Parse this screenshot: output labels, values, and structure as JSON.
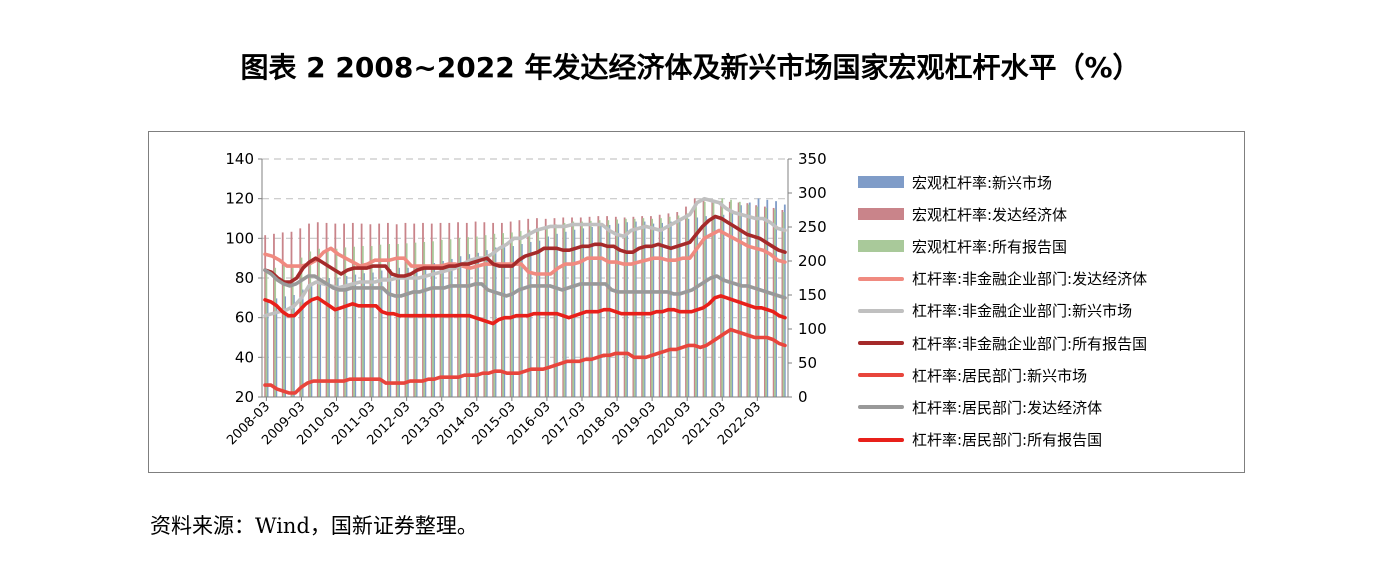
{
  "title": "图表 2  2008~2022 年发达经济体及新兴市场国家宏观杠杆水平（%）",
  "source": "资料来源：Wind，国新证券整理。",
  "chart_data": {
    "type": "bar+line",
    "title": "",
    "xlabel": "",
    "ylabel": "",
    "left_axis": {
      "range": [
        20,
        140
      ],
      "ticks": [
        "20",
        "40",
        "60",
        "80",
        "100",
        "120",
        "140"
      ]
    },
    "right_axis": {
      "range": [
        0,
        350
      ],
      "ticks": [
        "0",
        "50",
        "100",
        "150",
        "200",
        "250",
        "300",
        "350"
      ]
    },
    "x_tick_labels": [
      "2008-03",
      "2009-03",
      "2010-03",
      "2011-03",
      "2012-03",
      "2013-03",
      "2014-03",
      "2015-03",
      "2016-03",
      "2017-03",
      "2018-03",
      "2019-03",
      "2020-03",
      "2021-03",
      "2022-03"
    ],
    "quarters_per_year": 4,
    "grid": "horizontal dashed",
    "legend_position": "right",
    "bar_series": [
      {
        "name": "宏观杠杆率:新兴市场",
        "color": "#7f9cc8",
        "axis": "right",
        "values": [
          142,
          145,
          148,
          150,
          158,
          168,
          172,
          175,
          175,
          178,
          180,
          182,
          183,
          186,
          188,
          190,
          190,
          192,
          195,
          197,
          200,
          203,
          207,
          210,
          212,
          216,
          220,
          222,
          222,
          225,
          228,
          230,
          236,
          240,
          243,
          246,
          248,
          250,
          252,
          253,
          255,
          257,
          258,
          258,
          255,
          256,
          258,
          260,
          262,
          264,
          266,
          268,
          268,
          275,
          282,
          286,
          292,
          290,
          288,
          283
        ]
      },
      {
        "name": "宏观杠杆率:发达经济体",
        "color": "#c9848a",
        "axis": "right",
        "values": [
          238,
          240,
          242,
          243,
          248,
          255,
          257,
          256,
          255,
          255,
          256,
          255,
          254,
          255,
          256,
          254,
          256,
          255,
          256,
          255,
          256,
          256,
          257,
          256,
          258,
          257,
          256,
          256,
          258,
          260,
          262,
          263,
          262,
          263,
          264,
          264,
          264,
          265,
          266,
          266,
          265,
          264,
          265,
          266,
          266,
          268,
          270,
          272,
          280,
          292,
          292,
          290,
          288,
          287,
          286,
          285,
          282,
          280,
          278,
          275
        ]
      },
      {
        "name": "宏观杠杆率:所有报告国",
        "color": "#a9c99a",
        "axis": "right",
        "values": [
          188,
          190,
          193,
          195,
          205,
          214,
          218,
          218,
          218,
          220,
          221,
          222,
          222,
          224,
          225,
          225,
          226,
          227,
          228,
          229,
          231,
          232,
          234,
          235,
          236,
          238,
          240,
          241,
          242,
          244,
          246,
          248,
          252,
          254,
          256,
          258,
          258,
          259,
          260,
          260,
          261,
          262,
          262,
          263,
          262,
          263,
          265,
          267,
          270,
          280,
          287,
          289,
          292,
          290,
          287,
          283,
          280,
          278,
          276,
          272
        ]
      }
    ],
    "line_series": [
      {
        "name": "杠杆率:非金融企业部门:发达经济体",
        "color": "#f08a80",
        "axis": "left",
        "values": [
          92,
          91,
          89,
          86,
          86,
          86,
          87,
          89,
          93,
          95,
          92,
          90,
          88,
          86,
          87,
          89,
          89,
          89,
          90,
          90,
          86,
          86,
          86,
          86,
          86,
          87,
          87,
          86,
          85,
          86,
          87,
          87,
          87,
          87,
          87,
          87,
          83,
          82,
          82,
          82,
          85,
          87,
          87,
          88,
          90,
          90,
          90,
          88,
          88,
          87,
          87,
          88,
          89,
          90,
          90,
          89,
          89,
          90,
          90,
          95,
          100,
          102,
          104,
          102,
          100,
          98,
          96,
          95,
          94,
          92,
          89,
          88
        ]
      },
      {
        "name": "杠杆率:非金融企业部门:新兴市场",
        "color": "#c0c0c0",
        "axis": "left",
        "values": [
          61,
          62,
          63,
          64,
          66,
          70,
          76,
          78,
          77,
          76,
          75,
          76,
          77,
          78,
          78,
          78,
          79,
          79,
          80,
          80,
          80,
          80,
          81,
          82,
          83,
          84,
          85,
          87,
          89,
          90,
          90,
          92,
          95,
          97,
          100,
          100,
          102,
          104,
          105,
          106,
          106,
          106,
          107,
          107,
          107,
          107,
          107,
          104,
          102,
          101,
          104,
          105,
          106,
          105,
          104,
          106,
          108,
          110,
          112,
          118,
          120,
          119,
          118,
          115,
          113,
          112,
          111,
          110,
          110,
          108,
          105,
          104
        ]
      },
      {
        "name": "杠杆率:非金融企业部门:所有报告国",
        "color": "#a52a2a",
        "axis": "left",
        "values": [
          84,
          83,
          80,
          78,
          78,
          80,
          85,
          88,
          90,
          88,
          86,
          84,
          82,
          84,
          85,
          85,
          85,
          86,
          86,
          86,
          82,
          81,
          81,
          82,
          84,
          85,
          85,
          85,
          85,
          86,
          86,
          87,
          87,
          88,
          89,
          90,
          87,
          86,
          86,
          86,
          89,
          91,
          92,
          93,
          95,
          95,
          95,
          94,
          94,
          95,
          96,
          96,
          97,
          97,
          96,
          96,
          94,
          93,
          93,
          95,
          96,
          96,
          97,
          96,
          95,
          96,
          97,
          98,
          102,
          106,
          109,
          111,
          110,
          108,
          106,
          104,
          102,
          101,
          100,
          98,
          96,
          94,
          93
        ]
      },
      {
        "name": "杠杆率:居民部门:新兴市场",
        "color": "#e8453c",
        "axis": "left",
        "values": [
          26,
          26,
          24,
          23,
          22,
          22,
          25,
          27,
          28,
          28,
          28,
          28,
          28,
          28,
          29,
          29,
          29,
          29,
          29,
          29,
          27,
          27,
          27,
          27,
          28,
          28,
          28,
          29,
          29,
          30,
          30,
          30,
          30,
          31,
          31,
          31,
          32,
          32,
          33,
          33,
          32,
          32,
          32,
          33,
          34,
          34,
          34,
          35,
          36,
          37,
          38,
          38,
          38,
          39,
          39,
          40,
          41,
          41,
          42,
          42,
          42,
          40,
          40,
          40,
          41,
          42,
          43,
          44,
          44,
          45,
          46,
          46,
          45,
          46,
          48,
          50,
          52,
          54,
          53,
          52,
          51,
          50,
          50,
          50,
          49,
          47,
          46
        ]
      },
      {
        "name": "杠杆率:居民部门:发达经济体",
        "color": "#999999",
        "axis": "left",
        "values": [
          84,
          82,
          79,
          77,
          76,
          77,
          79,
          81,
          81,
          79,
          77,
          75,
          74,
          74,
          75,
          75,
          75,
          75,
          75,
          75,
          72,
          71,
          71,
          72,
          73,
          73,
          74,
          75,
          75,
          75,
          76,
          76,
          76,
          76,
          77,
          77,
          74,
          73,
          72,
          71,
          72,
          74,
          75,
          76,
          76,
          76,
          76,
          75,
          74,
          75,
          76,
          77,
          77,
          77,
          77,
          77,
          74,
          73,
          73,
          73,
          73,
          73,
          73,
          73,
          73,
          73,
          72,
          72,
          73,
          74,
          76,
          78,
          80,
          81,
          79,
          78,
          77,
          76,
          76,
          75,
          74,
          73,
          72,
          71,
          70
        ]
      },
      {
        "name": "杠杆率:居民部门:所有报告国",
        "color": "#e8201a",
        "axis": "left",
        "values": [
          69,
          68,
          66,
          63,
          61,
          61,
          64,
          67,
          69,
          70,
          68,
          66,
          64,
          65,
          66,
          67,
          66,
          66,
          66,
          66,
          63,
          62,
          62,
          61,
          61,
          61,
          61,
          61,
          61,
          61,
          61,
          61,
          61,
          61,
          61,
          61,
          60,
          59,
          58,
          57,
          59,
          60,
          60,
          61,
          61,
          61,
          62,
          62,
          62,
          62,
          62,
          61,
          60,
          61,
          62,
          63,
          63,
          63,
          64,
          64,
          63,
          62,
          62,
          62,
          62,
          62,
          62,
          63,
          63,
          64,
          64,
          63,
          63,
          63,
          64,
          65,
          67,
          70,
          71,
          70,
          69,
          68,
          67,
          66,
          65,
          65,
          64,
          63,
          61,
          60
        ]
      }
    ]
  }
}
